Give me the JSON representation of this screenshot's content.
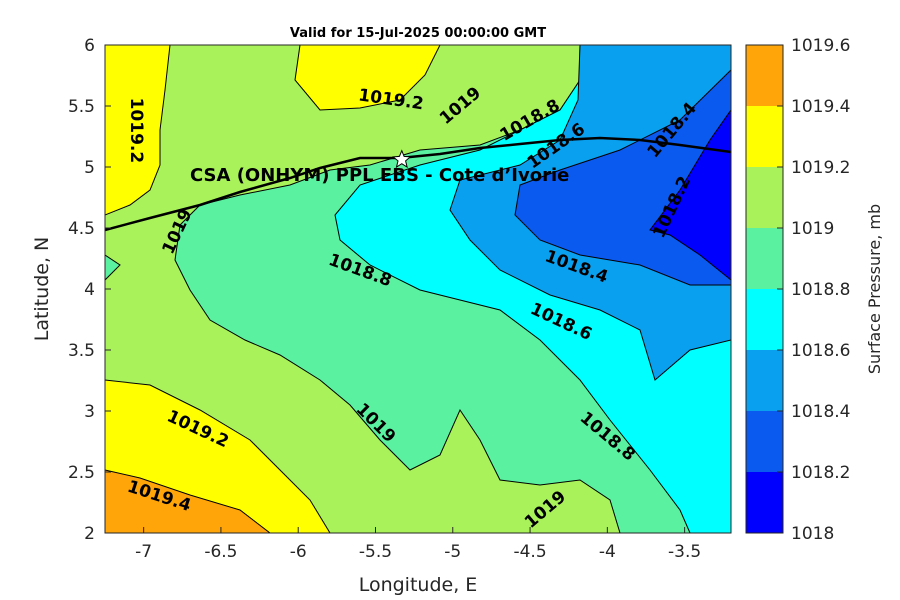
{
  "chart_data": {
    "type": "contour",
    "title": "Valid for 15-Jul-2025 00:00:00 GMT",
    "xlabel": "Longitude, E",
    "ylabel": "Latitude, N",
    "xlim": [
      -7.25,
      -3.2
    ],
    "ylim": [
      2,
      6
    ],
    "xticks": [
      "-7",
      "-6.5",
      "-6",
      "-5.5",
      "-5",
      "-4.5",
      "-4",
      "-3.5"
    ],
    "yticks": [
      "2",
      "2.5",
      "3",
      "3.5",
      "4",
      "4.5",
      "5",
      "5.5",
      "6"
    ],
    "colorbar": {
      "label": "Surface Pressure, mb",
      "levels": [
        1018,
        1018.2,
        1018.4,
        1018.6,
        1018.8,
        1019,
        1019.2,
        1019.4,
        1019.6
      ],
      "tick_labels": [
        "1018",
        "1018.2",
        "1018.4",
        "1018.6",
        "1018.8",
        "1019",
        "1019.2",
        "1019.4",
        "1019.6"
      ],
      "colors": [
        "#0000ff",
        "#0a5af0",
        "#0aa0f0",
        "#00ffff",
        "#5af2a0",
        "#aaf25a",
        "#ffff00",
        "#ffa50a",
        "#ff5a00"
      ]
    },
    "contour_labels": [
      {
        "text": "1019.2",
        "lon": -5.4,
        "lat": 5.55
      },
      {
        "text": "1019",
        "lon": -4.95,
        "lat": 5.5
      },
      {
        "text": "1018.8",
        "lon": -4.5,
        "lat": 5.38
      },
      {
        "text": "1018.6",
        "lon": -4.33,
        "lat": 5.17
      },
      {
        "text": "1018.4",
        "lon": -3.58,
        "lat": 5.3
      },
      {
        "text": "1018.2",
        "lon": -3.58,
        "lat": 4.67
      },
      {
        "text": "1019.2",
        "lon": -7.05,
        "lat": 5.3
      },
      {
        "text": "1019",
        "lon": -6.78,
        "lat": 4.47
      },
      {
        "text": "1018.8",
        "lon": -5.6,
        "lat": 4.15
      },
      {
        "text": "1018.4",
        "lon": -4.2,
        "lat": 4.18
      },
      {
        "text": "1018.6",
        "lon": -4.3,
        "lat": 3.73
      },
      {
        "text": "1019.2",
        "lon": -6.65,
        "lat": 2.85
      },
      {
        "text": "1019",
        "lon": -5.5,
        "lat": 2.9
      },
      {
        "text": "1018.8",
        "lon": -4.0,
        "lat": 2.79
      },
      {
        "text": "1019.4",
        "lon": -6.9,
        "lat": 2.3
      },
      {
        "text": "1019",
        "lon": -4.4,
        "lat": 2.19
      }
    ],
    "annotation": {
      "text": "CSA (ONHYM) PPL EBS  - Cote d’Ivorie",
      "marker": "white-star",
      "marker_lon": -5.33,
      "marker_lat": 5.06
    }
  }
}
